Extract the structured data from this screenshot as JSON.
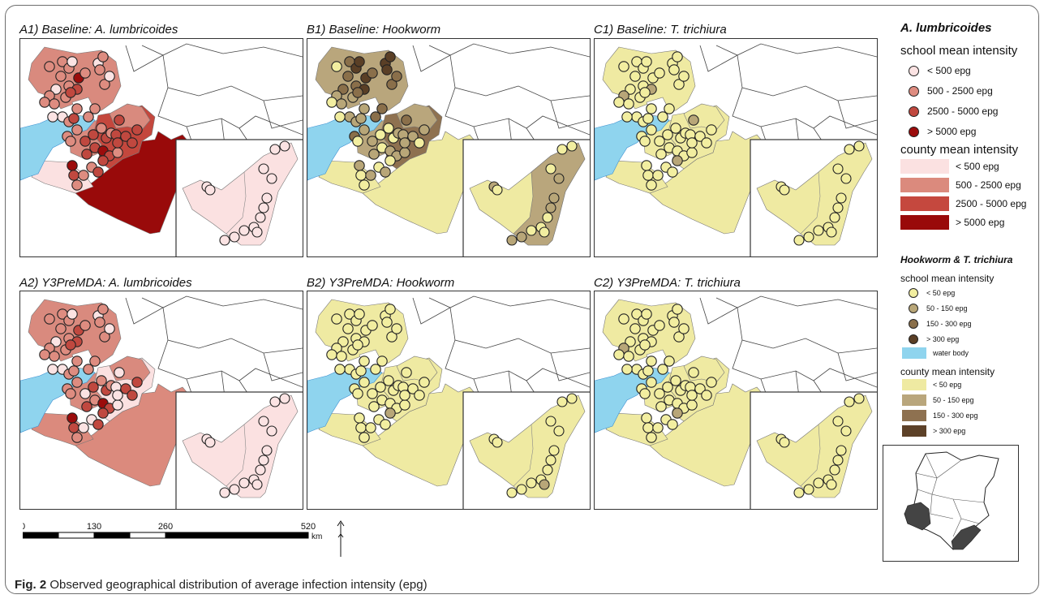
{
  "panels": {
    "a1": {
      "title": "A1) Baseline: A. lumbricoides"
    },
    "b1": {
      "title": "B1) Baseline: Hookworm"
    },
    "c1": {
      "title": "C1) Baseline: T. trichiura"
    },
    "a2": {
      "title": "A2) Y3PreMDA: A. lumbricoides"
    },
    "b2": {
      "title": "B2) Y3PreMDA: Hookworm"
    },
    "c2": {
      "title": "C2) Y3PreMDA: T. trichiura"
    }
  },
  "legend": {
    "ascaris": {
      "title": "A. lumbricoides",
      "school_heading": "school mean intensity",
      "school_items": [
        {
          "label": "< 500 epg",
          "color": "#fbe3e3"
        },
        {
          "label": "500 - 2500 epg",
          "color": "#de8c80"
        },
        {
          "label": "2500 - 5000 epg",
          "color": "#c0483f"
        },
        {
          "label": "> 5000 epg",
          "color": "#9b0c0c"
        }
      ],
      "county_heading": "county mean intensity",
      "county_items": [
        {
          "label": "< 500 epg",
          "color": "#fbe1e1"
        },
        {
          "label": "500 - 2500 epg",
          "color": "#db8a7d"
        },
        {
          "label": "2500 - 5000 epg",
          "color": "#c5483e"
        },
        {
          "label": "> 5000 epg",
          "color": "#990a0a"
        }
      ]
    },
    "hookworm_trichuris": {
      "title": "Hookworm & T. trichiura",
      "school_heading": "school mean intensity",
      "school_items": [
        {
          "label": "< 50 epg",
          "color": "#f2eea0"
        },
        {
          "label": "50 - 150 epg",
          "color": "#b8a678"
        },
        {
          "label": "150 - 300 epg",
          "color": "#8a6f4a"
        },
        {
          "label": "> 300 epg",
          "color": "#5a3f26"
        }
      ],
      "water_label": "water body",
      "water_color": "#8fd4ee",
      "county_heading": "county mean intensity",
      "county_items": [
        {
          "label": "< 50 epg",
          "color": "#efeaa2"
        },
        {
          "label": "50 - 150 epg",
          "color": "#b9a67c"
        },
        {
          "label": "150 - 300 epg",
          "color": "#8e7150"
        },
        {
          "label": "> 300 epg",
          "color": "#5d4128"
        }
      ]
    }
  },
  "scale": {
    "ticks": [
      "0",
      "130",
      "260",
      "520"
    ],
    "unit": "km"
  },
  "caption": {
    "label": "Fig. 2",
    "text": " Observed geographical distribution of average infection intensity (epg)"
  },
  "map_fills": {
    "a1": {
      "west": "#d98a7e",
      "center": "#c4473d",
      "southeast": "#990a0a",
      "inset": "#fbe1e1",
      "school_palette": [
        "#fbe3e3",
        "#de8c80",
        "#c0483f",
        "#9b0c0c"
      ]
    },
    "b1": {
      "west": "#b9a67c",
      "center": "#8e7150",
      "southeast": "#efeaa2",
      "inset": "#efeaa2",
      "inset_right": "#b9a67c",
      "school_palette": [
        "#f2eea0",
        "#b8a678",
        "#8a6f4a",
        "#5a3f26"
      ]
    },
    "c1": {
      "west": "#efeaa2",
      "center": "#efeaa2",
      "southeast": "#efeaa2",
      "inset": "#efeaa2",
      "school_palette": [
        "#f2eea0",
        "#b8a678",
        "#8a6f4a",
        "#5a3f26"
      ]
    },
    "a2": {
      "west": "#d98a7e",
      "center": "#fbe1e1",
      "southeast": "#db8a7d",
      "inset": "#fbe1e1",
      "school_palette": [
        "#fbe3e3",
        "#de8c80",
        "#c0483f",
        "#9b0c0c"
      ]
    },
    "b2": {
      "west": "#efeaa2",
      "center": "#efeaa2",
      "southeast": "#efeaa2",
      "inset": "#efeaa2",
      "school_palette": [
        "#f2eea0",
        "#b8a678",
        "#8a6f4a",
        "#5a3f26"
      ]
    },
    "c2": {
      "west": "#efeaa2",
      "center": "#efeaa2",
      "southeast": "#efeaa2",
      "inset": "#efeaa2",
      "school_palette": [
        "#f2eea0",
        "#b8a678",
        "#8a6f4a",
        "#5a3f26"
      ]
    }
  }
}
